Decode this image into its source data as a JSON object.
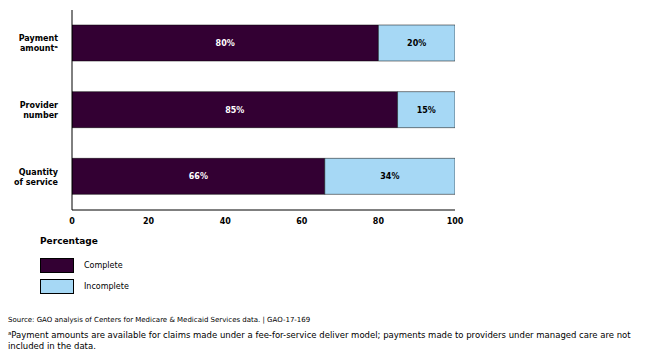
{
  "chart_data": {
    "type": "bar",
    "orientation": "horizontal",
    "stacked": true,
    "data_labels": true,
    "categories": [
      "Payment amountᵃ",
      "Provider number",
      "Quantity of service"
    ],
    "series": [
      {
        "name": "Complete",
        "color": "#330033",
        "values": [
          80,
          85,
          66
        ],
        "value_labels": [
          "80%",
          "85%",
          "66%"
        ]
      },
      {
        "name": "Incomplete",
        "color": "#a6d8f5",
        "values": [
          20,
          15,
          34
        ],
        "value_labels": [
          "20%",
          "15%",
          "34%"
        ]
      }
    ],
    "xlim": [
      0,
      100
    ],
    "xticks": [
      0,
      20,
      40,
      60,
      80,
      100
    ],
    "x_label": "Percentage",
    "source": "Source: GAO analysis of Centers for Medicare & Medicaid Services data.  |  GAO-17-169",
    "footnote": "ᵃPayment amounts are available for claims made under a fee-for-service deliver model; payments made to providers under managed care are not included in the data."
  }
}
